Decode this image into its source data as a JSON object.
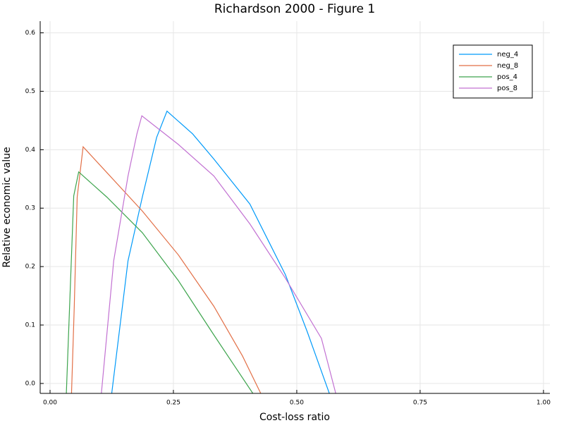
{
  "chart_data": {
    "type": "line",
    "title": "Richardson 2000 - Figure 1",
    "xlabel": "Cost-loss ratio",
    "ylabel": "Relative economic value",
    "xlim": [
      -0.02,
      1.013
    ],
    "ylim": [
      -0.017,
      0.62
    ],
    "xticks": [
      {
        "value": 0,
        "label": "0.00"
      },
      {
        "value": 0.25,
        "label": "0.25"
      },
      {
        "value": 0.5,
        "label": "0.50"
      },
      {
        "value": 0.75,
        "label": "0.75"
      },
      {
        "value": 1,
        "label": "1.00"
      }
    ],
    "yticks": [
      {
        "value": 0,
        "label": "0.0"
      },
      0.1,
      0.2,
      0.3,
      0.4,
      0.5,
      0.6
    ],
    "grid": true,
    "legend": "top-right",
    "series": [
      {
        "name": "neg_4",
        "color": "#009af9",
        "x": [
          0.125,
          0.158,
          0.187,
          0.216,
          0.237,
          0.289,
          0.332,
          0.405,
          0.477,
          0.521,
          0.566
        ],
        "values": [
          -0.017,
          0.21,
          0.319,
          0.421,
          0.466,
          0.427,
          0.384,
          0.307,
          0.186,
          0.089,
          -0.017
        ]
      },
      {
        "name": "neg_8",
        "color": "#e26f46",
        "x": [
          0.0435,
          0.049,
          0.055,
          0.067,
          0.115,
          0.187,
          0.26,
          0.332,
          0.39,
          0.427
        ],
        "values": [
          -0.017,
          0.13,
          0.319,
          0.405,
          0.361,
          0.295,
          0.22,
          0.132,
          0.047,
          -0.017
        ]
      },
      {
        "name": "pos_4",
        "color": "#3da44d",
        "x": [
          0.033,
          0.048,
          0.058,
          0.115,
          0.187,
          0.26,
          0.332,
          0.411
        ],
        "values": [
          -0.017,
          0.321,
          0.362,
          0.319,
          0.258,
          0.176,
          0.083,
          -0.017
        ]
      },
      {
        "name": "pos_8",
        "color": "#c271d2",
        "x": [
          0.104,
          0.129,
          0.158,
          0.176,
          0.186,
          0.26,
          0.332,
          0.405,
          0.477,
          0.55,
          0.579
        ],
        "values": [
          -0.017,
          0.21,
          0.355,
          0.427,
          0.458,
          0.409,
          0.355,
          0.273,
          0.18,
          0.077,
          -0.017
        ]
      }
    ]
  }
}
